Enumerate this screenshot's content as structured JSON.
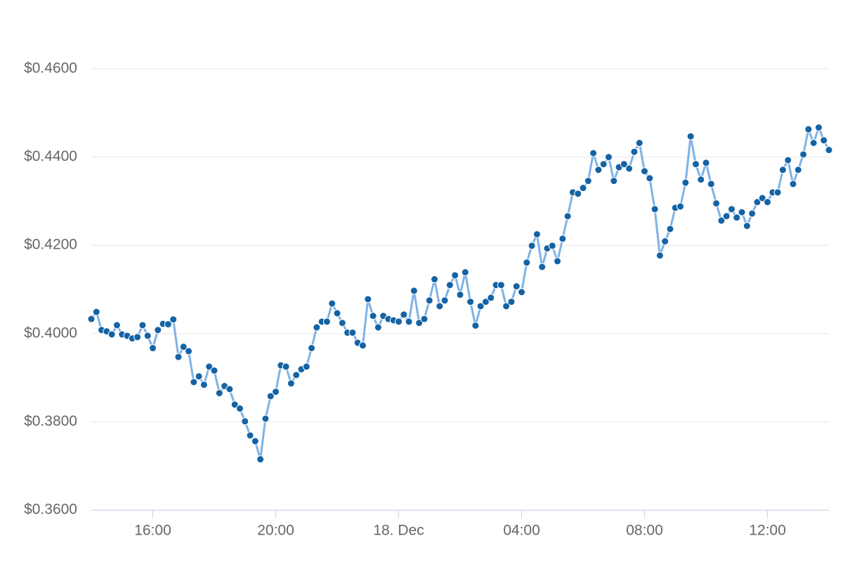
{
  "chart_data": {
    "type": "line",
    "x": [
      840,
      850,
      860,
      870,
      880,
      890,
      900,
      910,
      920,
      930,
      940,
      950,
      960,
      970,
      980,
      990,
      1000,
      1010,
      1020,
      1030,
      1040,
      1050,
      1060,
      1070,
      1080,
      1090,
      1100,
      1110,
      1120,
      1130,
      1140,
      1150,
      1160,
      1170,
      1180,
      1190,
      1200,
      1210,
      1220,
      1230,
      1240,
      1250,
      1260,
      1270,
      1280,
      1290,
      1300,
      1310,
      1320,
      1330,
      1340,
      1350,
      1360,
      1370,
      1380,
      1390,
      1400,
      1410,
      1420,
      1430,
      1440,
      1450,
      1460,
      1470,
      1480,
      1490,
      1500,
      1510,
      1520,
      1530,
      1540,
      1550,
      1560,
      1570,
      1580,
      1590,
      1600,
      1610,
      1620,
      1630,
      1640,
      1650,
      1660,
      1670,
      1680,
      1690,
      1700,
      1710,
      1720,
      1730,
      1740,
      1750,
      1760,
      1770,
      1780,
      1790,
      1800,
      1810,
      1820,
      1830,
      1840,
      1850,
      1860,
      1870,
      1880,
      1890,
      1900,
      1910,
      1920,
      1930,
      1940,
      1950,
      1960,
      1970,
      1980,
      1990,
      2000,
      2010,
      2020,
      2030,
      2040,
      2050,
      2060,
      2070,
      2080,
      2090,
      2100,
      2110,
      2120,
      2130,
      2140,
      2150,
      2160,
      2170,
      2180,
      2190,
      2200,
      2210,
      2220,
      2230,
      2240,
      2250,
      2260,
      2270,
      2280
    ],
    "values": [
      0.4033,
      0.4049,
      0.4008,
      0.4005,
      0.3998,
      0.4019,
      0.3998,
      0.3995,
      0.3989,
      0.3992,
      0.4019,
      0.3995,
      0.3967,
      0.4008,
      0.4022,
      0.4021,
      0.4032,
      0.3947,
      0.397,
      0.396,
      0.389,
      0.3903,
      0.3884,
      0.3925,
      0.3916,
      0.3865,
      0.3881,
      0.3874,
      0.3839,
      0.383,
      0.3801,
      0.3769,
      0.3756,
      0.3715,
      0.3807,
      0.3858,
      0.3868,
      0.3928,
      0.3925,
      0.3887,
      0.3906,
      0.3919,
      0.3925,
      0.3967,
      0.4014,
      0.4027,
      0.4027,
      0.4068,
      0.4046,
      0.4024,
      0.4002,
      0.4002,
      0.3979,
      0.3973,
      0.4078,
      0.404,
      0.4014,
      0.404,
      0.4033,
      0.403,
      0.4027,
      0.4043,
      0.4027,
      0.4097,
      0.4024,
      0.4033,
      0.4075,
      0.4123,
      0.4062,
      0.4075,
      0.411,
      0.4132,
      0.4088,
      0.4139,
      0.4072,
      0.4018,
      0.4062,
      0.4072,
      0.4081,
      0.411,
      0.411,
      0.4062,
      0.4072,
      0.4107,
      0.4094,
      0.4161,
      0.4199,
      0.4225,
      0.4151,
      0.4193,
      0.4199,
      0.4164,
      0.4215,
      0.4266,
      0.432,
      0.4317,
      0.433,
      0.4346,
      0.4409,
      0.4371,
      0.4384,
      0.44,
      0.4346,
      0.4377,
      0.4384,
      0.4374,
      0.4412,
      0.4432,
      0.4368,
      0.4352,
      0.4282,
      0.4177,
      0.4209,
      0.4237,
      0.4285,
      0.4288,
      0.4342,
      0.4447,
      0.4384,
      0.4349,
      0.4387,
      0.4339,
      0.4295,
      0.4256,
      0.4266,
      0.4282,
      0.4263,
      0.4275,
      0.4244,
      0.4272,
      0.4298,
      0.4307,
      0.4298,
      0.432,
      0.432,
      0.4371,
      0.4393,
      0.4339,
      0.4371,
      0.4406,
      0.4463,
      0.4432,
      0.4467,
      0.4438,
      0.4416
    ],
    "color": "#7fb2e5",
    "marker_color": "#1463a5",
    "xlim": [
      840,
      2280
    ],
    "xticks": [
      {
        "value": 960,
        "label": "16:00"
      },
      {
        "value": 1200,
        "label": "20:00"
      },
      {
        "value": 1440,
        "label": "18. Dec"
      },
      {
        "value": 1680,
        "label": "04:00"
      },
      {
        "value": 1920,
        "label": "08:00"
      },
      {
        "value": 2160,
        "label": "12:00"
      }
    ],
    "ylim": [
      0.36,
      0.46
    ],
    "yticks": [
      {
        "value": 0.36,
        "label": "$0.3600"
      },
      {
        "value": 0.38,
        "label": "$0.3800"
      },
      {
        "value": 0.4,
        "label": "$0.4000"
      },
      {
        "value": 0.42,
        "label": "$0.4200"
      },
      {
        "value": 0.44,
        "label": "$0.4400"
      },
      {
        "value": 0.46,
        "label": "$0.4600"
      }
    ],
    "grid": true
  }
}
